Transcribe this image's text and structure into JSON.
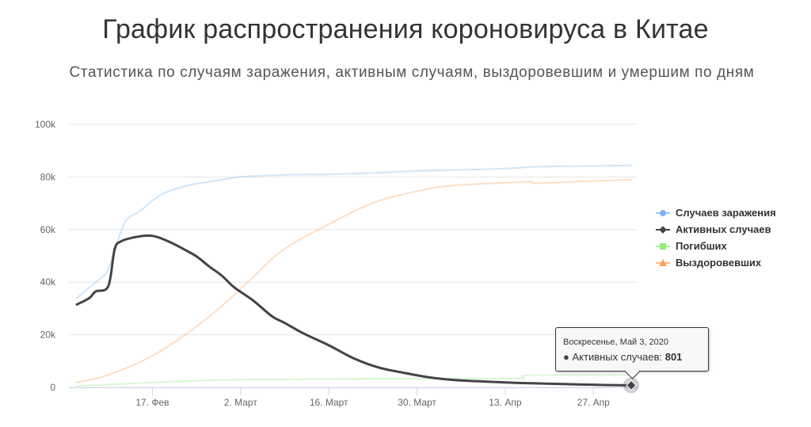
{
  "header": {
    "title": "График распространения короновируса в Китае",
    "subtitle": "Статистика по случаям заражения, активным случаям, выздоровевшим и умершим по дням"
  },
  "legend": {
    "items": [
      {
        "label": "Случаев заражения",
        "color": "#7cb5ec",
        "marker": "circle"
      },
      {
        "label": "Активных случаев",
        "color": "#434348",
        "marker": "diamond"
      },
      {
        "label": "Погибших",
        "color": "#90ed7d",
        "marker": "square"
      },
      {
        "label": "Выздоровевших",
        "color": "#f7a35c",
        "marker": "triangle"
      }
    ]
  },
  "tooltip": {
    "date": "Воскресенье, Май 3, 2020",
    "series_label": "Активных случаев:",
    "value": "801"
  },
  "chart_data": {
    "type": "line",
    "x_type": "date",
    "x_start": "2020-02-05",
    "x_end": "2020-05-03",
    "x_ticks": [
      {
        "date": "2020-02-17",
        "label": "17. Фев"
      },
      {
        "date": "2020-03-02",
        "label": "2. Март"
      },
      {
        "date": "2020-03-16",
        "label": "16. Март"
      },
      {
        "date": "2020-03-30",
        "label": "30. Март"
      },
      {
        "date": "2020-04-13",
        "label": "13. Апр"
      },
      {
        "date": "2020-04-27",
        "label": "27. Апр"
      }
    ],
    "y_ticks": [
      0,
      20000,
      40000,
      60000,
      80000,
      100000
    ],
    "y_tick_labels": [
      "0",
      "20k",
      "40k",
      "60k",
      "80k",
      "100k"
    ],
    "ylim": [
      0,
      100000
    ],
    "grid": true,
    "legend_position": "right",
    "series": [
      {
        "name": "Случаев заражения",
        "color": "#7cb5ec",
        "faded": true,
        "points": [
          [
            "2020-02-05",
            34000
          ],
          [
            "2020-02-07",
            38000
          ],
          [
            "2020-02-09",
            42000
          ],
          [
            "2020-02-10",
            45000
          ],
          [
            "2020-02-12",
            59000
          ],
          [
            "2020-02-13",
            64000
          ],
          [
            "2020-02-15",
            67000
          ],
          [
            "2020-02-17",
            71000
          ],
          [
            "2020-02-19",
            74000
          ],
          [
            "2020-02-23",
            77000
          ],
          [
            "2020-02-27",
            78500
          ],
          [
            "2020-03-02",
            80000
          ],
          [
            "2020-03-09",
            80800
          ],
          [
            "2020-03-16",
            81000
          ],
          [
            "2020-03-23",
            81500
          ],
          [
            "2020-03-30",
            82300
          ],
          [
            "2020-04-06",
            82700
          ],
          [
            "2020-04-13",
            83200
          ],
          [
            "2020-04-17",
            83800
          ],
          [
            "2020-04-20",
            84000
          ],
          [
            "2020-05-03",
            84400
          ]
        ]
      },
      {
        "name": "Активных случаев",
        "color": "#434348",
        "faded": false,
        "points": [
          [
            "2020-02-05",
            31500
          ],
          [
            "2020-02-07",
            34000
          ],
          [
            "2020-02-08",
            36500
          ],
          [
            "2020-02-10",
            38500
          ],
          [
            "2020-02-11",
            52500
          ],
          [
            "2020-02-12",
            55500
          ],
          [
            "2020-02-14",
            57000
          ],
          [
            "2020-02-16",
            57700
          ],
          [
            "2020-02-17",
            57600
          ],
          [
            "2020-02-18",
            57000
          ],
          [
            "2020-02-20",
            55000
          ],
          [
            "2020-02-22",
            52500
          ],
          [
            "2020-02-24",
            49800
          ],
          [
            "2020-02-26",
            46000
          ],
          [
            "2020-02-28",
            42500
          ],
          [
            "2020-03-01",
            38000
          ],
          [
            "2020-03-04",
            33000
          ],
          [
            "2020-03-07",
            27000
          ],
          [
            "2020-03-09",
            24500
          ],
          [
            "2020-03-12",
            20500
          ],
          [
            "2020-03-16",
            16000
          ],
          [
            "2020-03-20",
            11000
          ],
          [
            "2020-03-24",
            7500
          ],
          [
            "2020-03-28",
            5500
          ],
          [
            "2020-04-01",
            3800
          ],
          [
            "2020-04-05",
            2800
          ],
          [
            "2020-04-10",
            2200
          ],
          [
            "2020-04-15",
            1700
          ],
          [
            "2020-04-20",
            1400
          ],
          [
            "2020-04-25",
            1100
          ],
          [
            "2020-04-30",
            850
          ],
          [
            "2020-05-03",
            801
          ]
        ]
      },
      {
        "name": "Погибших",
        "color": "#90ed7d",
        "faded": true,
        "points": [
          [
            "2020-02-05",
            600
          ],
          [
            "2020-02-12",
            1300
          ],
          [
            "2020-02-19",
            2100
          ],
          [
            "2020-02-26",
            2700
          ],
          [
            "2020-03-04",
            3000
          ],
          [
            "2020-03-16",
            3200
          ],
          [
            "2020-03-30",
            3300
          ],
          [
            "2020-04-13",
            3350
          ],
          [
            "2020-04-16",
            3350
          ],
          [
            "2020-04-17",
            4600
          ],
          [
            "2020-05-03",
            4633
          ]
        ]
      },
      {
        "name": "Выздоровевших",
        "color": "#f7a35c",
        "faded": true,
        "points": [
          [
            "2020-02-05",
            1800
          ],
          [
            "2020-02-09",
            4000
          ],
          [
            "2020-02-13",
            7500
          ],
          [
            "2020-02-17",
            12000
          ],
          [
            "2020-02-21",
            18000
          ],
          [
            "2020-02-25",
            25000
          ],
          [
            "2020-02-29",
            33000
          ],
          [
            "2020-03-04",
            42000
          ],
          [
            "2020-03-08",
            51000
          ],
          [
            "2020-03-12",
            57000
          ],
          [
            "2020-03-16",
            62000
          ],
          [
            "2020-03-20",
            67000
          ],
          [
            "2020-03-24",
            71000
          ],
          [
            "2020-03-28",
            73500
          ],
          [
            "2020-04-02",
            76000
          ],
          [
            "2020-04-06",
            77000
          ],
          [
            "2020-04-13",
            77800
          ],
          [
            "2020-04-17",
            78200
          ],
          [
            "2020-04-18",
            77600
          ],
          [
            "2020-04-25",
            78300
          ],
          [
            "2020-05-03",
            79000
          ]
        ]
      }
    ]
  }
}
